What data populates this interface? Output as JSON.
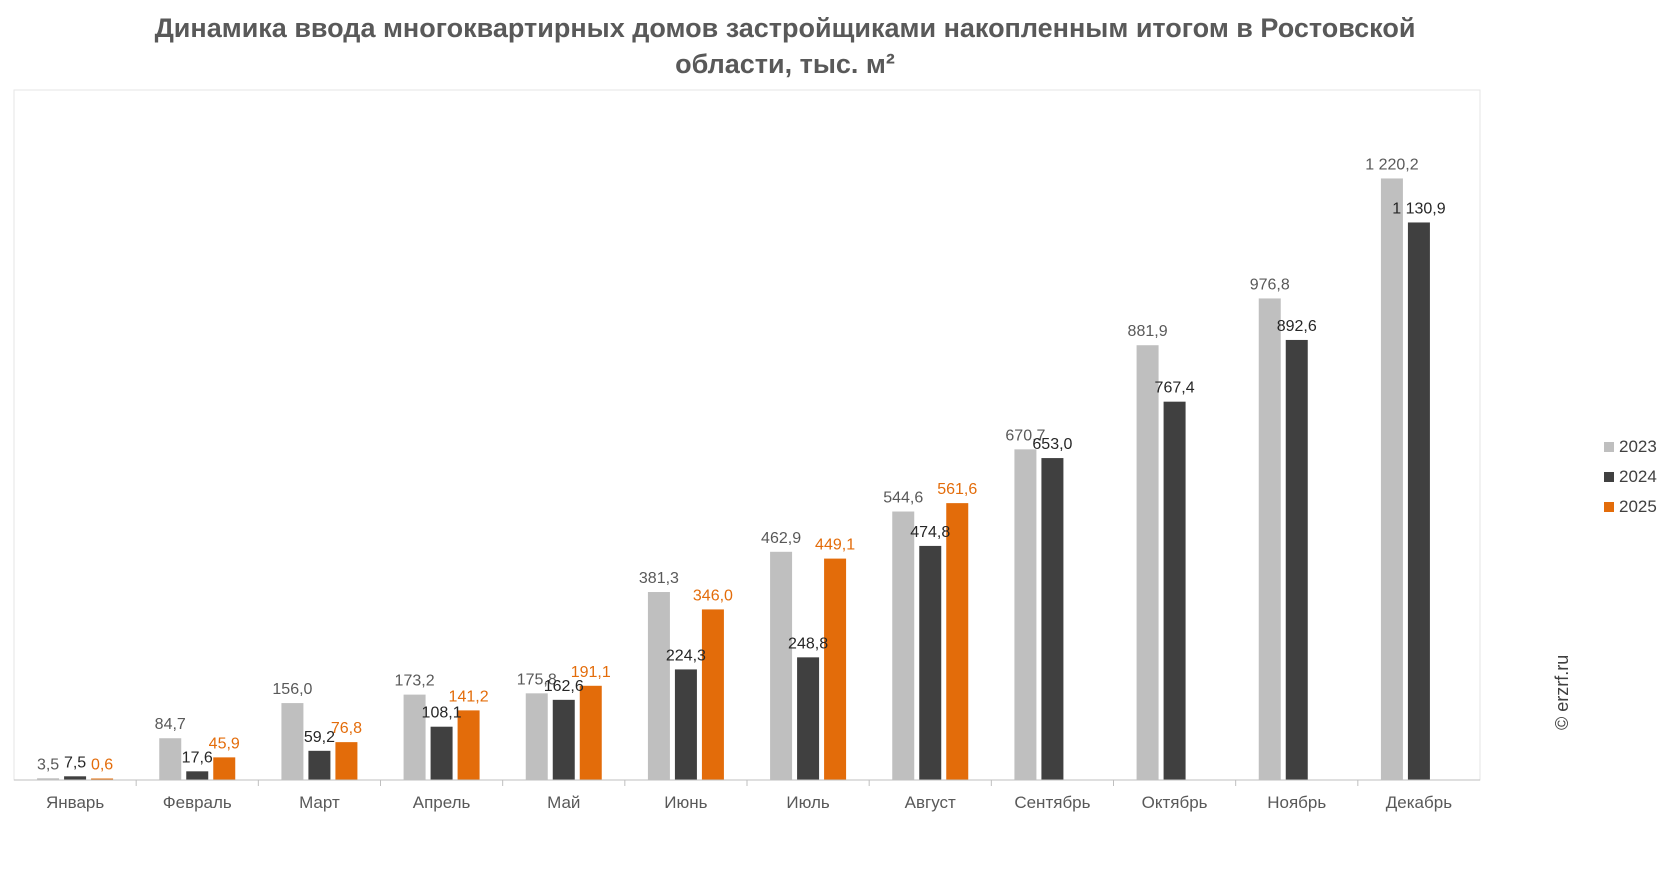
{
  "title": "Динамика ввода многоквартирных домов застройщиками накопленным итогом в Ростовской области, тыс. м²",
  "watermark": "© erzrf.ru",
  "chart_data": {
    "type": "bar",
    "title": "Динамика ввода многоквартирных домов застройщиками накопленным итогом в Ростовской области, тыс. м²",
    "categories": [
      "Январь",
      "Февраль",
      "Март",
      "Апрель",
      "Май",
      "Июнь",
      "Июль",
      "Август",
      "Сентябрь",
      "Октябрь",
      "Ноябрь",
      "Декабрь"
    ],
    "series": [
      {
        "name": "2023",
        "color": "#bfbfbf",
        "label_color": "#595959",
        "values": [
          3.5,
          84.7,
          156.0,
          173.2,
          175.8,
          381.3,
          462.9,
          544.6,
          670.7,
          881.9,
          976.8,
          1220.2
        ],
        "labels": [
          "3,5",
          "84,7",
          "156,0",
          "173,2",
          "175,8",
          "381,3",
          "462,9",
          "544,6",
          "670,7",
          "881,9",
          "976,8",
          "1 220,2"
        ]
      },
      {
        "name": "2024",
        "color": "#404040",
        "label_color": "#262626",
        "values": [
          7.5,
          17.6,
          59.2,
          108.1,
          162.6,
          224.3,
          248.8,
          474.8,
          653.0,
          767.4,
          892.6,
          1130.9
        ],
        "labels": [
          "7,5",
          "17,6",
          "59,2",
          "108,1",
          "162,6",
          "224,3",
          "248,8",
          "474,8",
          "653,0",
          "767,4",
          "892,6",
          "1 130,9"
        ]
      },
      {
        "name": "2025",
        "color": "#e36c0a",
        "label_color": "#e36c0a",
        "values": [
          0.6,
          45.9,
          76.8,
          141.2,
          191.1,
          346.0,
          449.1,
          561.6,
          null,
          null,
          null,
          null
        ],
        "labels": [
          "0,6",
          "45,9",
          "76,8",
          "141,2",
          "191,1",
          "346,0",
          "449,1",
          "561,6",
          "",
          "",
          "",
          ""
        ]
      }
    ],
    "ylim": [
      0,
      1300
    ],
    "grid": false,
    "legend_position": "right"
  }
}
